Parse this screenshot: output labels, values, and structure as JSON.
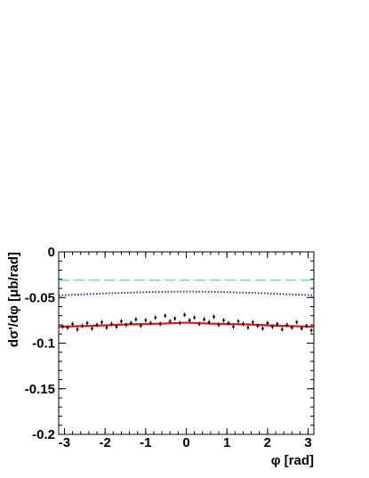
{
  "chart_data": {
    "type": "line",
    "title": "",
    "xlabel": "φ [rad]",
    "ylabel": "dσ'/dφ [μb/rad]",
    "xlim": [
      -3.14159,
      3.14159
    ],
    "ylim": [
      -0.2,
      0.0
    ],
    "grid": false,
    "x_ticks": [
      -3,
      -2,
      -1,
      0,
      1,
      2,
      3
    ],
    "x_tick_labels": [
      "-3",
      "-2",
      "-1",
      "0",
      "1",
      "2",
      "3"
    ],
    "y_ticks": [
      0,
      -0.05,
      -0.1,
      -0.15,
      -0.2
    ],
    "y_tick_labels": [
      "0",
      "-0.05",
      "-0.1",
      "-0.15",
      "-0.2"
    ],
    "series": [
      {
        "style": "dashed",
        "color": "#66dd88",
        "x": [
          -3.14159,
          3.14159
        ],
        "y": [
          -0.031,
          -0.031
        ]
      },
      {
        "style": "dotted",
        "color": "#2233dd",
        "x": [
          -3.14,
          -2.5,
          -2.0,
          -1.5,
          -1.0,
          -0.5,
          0.0,
          0.5,
          1.0,
          1.5,
          2.0,
          2.5,
          3.14
        ],
        "y": [
          -0.0475,
          -0.0465,
          -0.0455,
          -0.0448,
          -0.0441,
          -0.0437,
          -0.0435,
          -0.0437,
          -0.0441,
          -0.0448,
          -0.0455,
          -0.0465,
          -0.0475
        ]
      },
      {
        "style": "solid",
        "color": "#ee1111",
        "x": [
          -3.14,
          -2.5,
          -2.0,
          -1.5,
          -1.0,
          -0.5,
          0.0,
          0.5,
          1.0,
          1.5,
          2.0,
          2.5,
          3.14
        ],
        "y": [
          -0.082,
          -0.0812,
          -0.0805,
          -0.0795,
          -0.079,
          -0.0785,
          -0.0775,
          -0.0785,
          -0.079,
          -0.0795,
          -0.0805,
          -0.0812,
          -0.082
        ]
      },
      {
        "style": "points",
        "color": "#000000",
        "x": [
          -3.04,
          -2.92,
          -2.8,
          -2.68,
          -2.56,
          -2.44,
          -2.32,
          -2.2,
          -2.08,
          -1.96,
          -1.84,
          -1.72,
          -1.6,
          -1.48,
          -1.36,
          -1.24,
          -1.12,
          -1.0,
          -0.88,
          -0.76,
          -0.64,
          -0.52,
          -0.4,
          -0.28,
          -0.16,
          -0.04,
          0.08,
          0.2,
          0.32,
          0.44,
          0.56,
          0.68,
          0.8,
          0.92,
          1.04,
          1.16,
          1.28,
          1.4,
          1.52,
          1.64,
          1.76,
          1.88,
          2.0,
          2.12,
          2.24,
          2.36,
          2.48,
          2.6,
          2.72,
          2.84,
          2.96,
          3.08
        ],
        "y": [
          -0.082,
          -0.083,
          -0.079,
          -0.085,
          -0.081,
          -0.078,
          -0.084,
          -0.08,
          -0.077,
          -0.083,
          -0.079,
          -0.082,
          -0.076,
          -0.08,
          -0.078,
          -0.074,
          -0.081,
          -0.075,
          -0.078,
          -0.072,
          -0.079,
          -0.07,
          -0.076,
          -0.073,
          -0.078,
          -0.069,
          -0.075,
          -0.072,
          -0.079,
          -0.074,
          -0.077,
          -0.071,
          -0.08,
          -0.075,
          -0.078,
          -0.082,
          -0.076,
          -0.079,
          -0.083,
          -0.077,
          -0.081,
          -0.084,
          -0.078,
          -0.082,
          -0.079,
          -0.085,
          -0.08,
          -0.083,
          -0.077,
          -0.084,
          -0.081,
          -0.086
        ]
      }
    ]
  }
}
